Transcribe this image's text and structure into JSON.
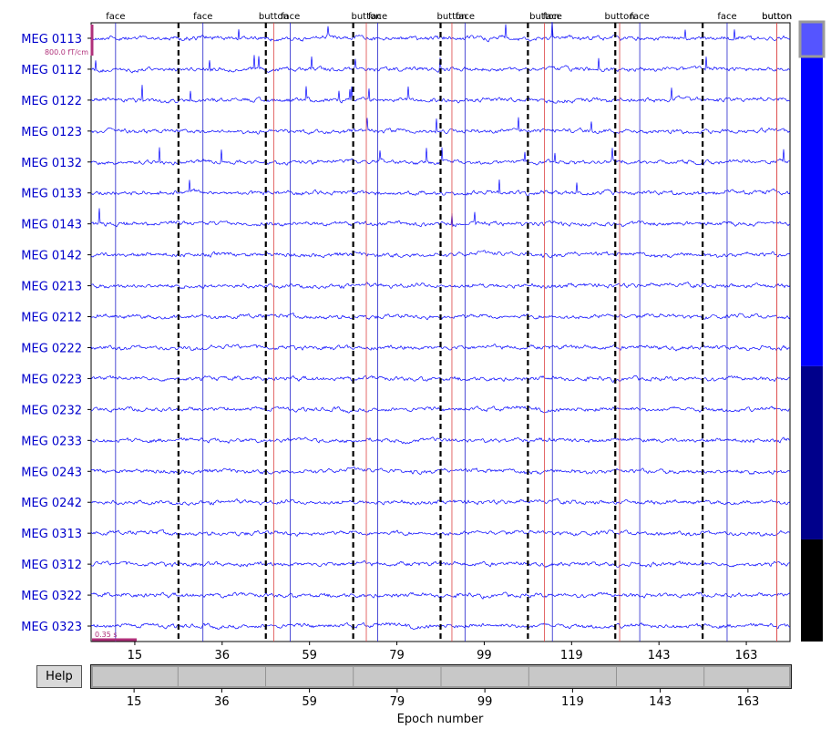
{
  "help_label": "Help",
  "xlabel": "Epoch number",
  "scale_bar_label": "800.0 fT/cm",
  "time_scale_label": "0.35 s",
  "colors": {
    "trace": "#0000ff",
    "channel_label": "#0000cc",
    "face_line": "#2222cc",
    "button_line": "#dd4444",
    "epoch_boundary": "#000000",
    "scale_bar": "#b0307a",
    "scrollbar_light": "#0000ff",
    "scrollbar_dark": "#00008b",
    "scrollbar_black": "#000000",
    "scrollbar_thumb": "#5555ff"
  },
  "chart_data": {
    "type": "line",
    "title": "",
    "xlabel": "Epoch number",
    "ylabel": "",
    "channels": [
      "MEG 0113",
      "MEG 0112",
      "MEG 0122",
      "MEG 0123",
      "MEG 0132",
      "MEG 0133",
      "MEG 0143",
      "MEG 0142",
      "MEG 0213",
      "MEG 0212",
      "MEG 0222",
      "MEG 0223",
      "MEG 0232",
      "MEG 0233",
      "MEG 0243",
      "MEG 0242",
      "MEG 0313",
      "MEG 0312",
      "MEG 0322",
      "MEG 0323"
    ],
    "x_ticks": [
      "15",
      "36",
      "59",
      "79",
      "99",
      "119",
      "143",
      "163"
    ],
    "bottom_ticks": [
      "15",
      "36",
      "59",
      "79",
      "99",
      "119",
      "143",
      "163"
    ],
    "events": [
      {
        "label": "face",
        "epoch": 0,
        "pos": 0.28,
        "type": "face"
      },
      {
        "label": "face",
        "epoch": 1,
        "pos": 0.28,
        "type": "face"
      },
      {
        "label": "button",
        "epoch": 2,
        "pos": 0.09,
        "type": "button"
      },
      {
        "label": "face",
        "epoch": 2,
        "pos": 0.28,
        "type": "face"
      },
      {
        "label": "button",
        "epoch": 3,
        "pos": 0.15,
        "type": "button"
      },
      {
        "label": "face",
        "epoch": 3,
        "pos": 0.28,
        "type": "face"
      },
      {
        "label": "button",
        "epoch": 4,
        "pos": 0.13,
        "type": "button"
      },
      {
        "label": "face",
        "epoch": 4,
        "pos": 0.28,
        "type": "face"
      },
      {
        "label": "button",
        "epoch": 5,
        "pos": 0.19,
        "type": "button"
      },
      {
        "label": "face",
        "epoch": 5,
        "pos": 0.28,
        "type": "face"
      },
      {
        "label": "button",
        "epoch": 6,
        "pos": 0.05,
        "type": "button"
      },
      {
        "label": "face",
        "epoch": 6,
        "pos": 0.28,
        "type": "face"
      },
      {
        "label": "button",
        "epoch": 7,
        "pos": 0.85,
        "type": "button"
      },
      {
        "label": "face",
        "epoch": 7,
        "pos": 0.28,
        "type": "face"
      },
      {
        "label": "button",
        "epoch": 7,
        "pos": 0.85,
        "type": "button"
      }
    ]
  }
}
